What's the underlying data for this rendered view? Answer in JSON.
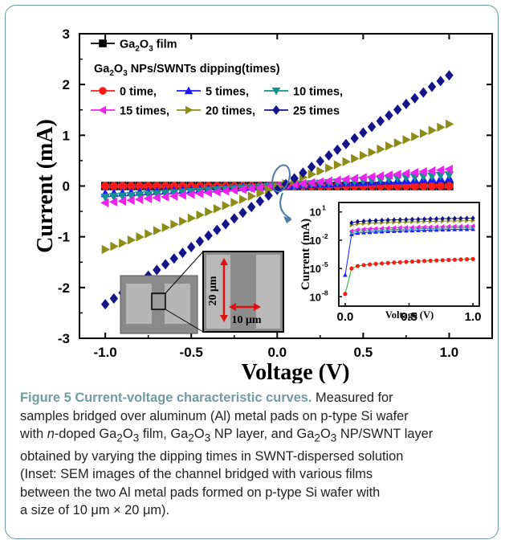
{
  "chart_data": [
    {
      "type": "line",
      "xlabel": "Voltage (V)",
      "ylabel": "Current (mA)",
      "xlim": [
        -1.15,
        1.25
      ],
      "ylim": [
        -3,
        3
      ],
      "xticks": [
        "-1.0",
        "-0.5",
        "0.0",
        "0.5",
        "1.0"
      ],
      "yticks": [
        "-3",
        "-2",
        "-1",
        "0",
        "1",
        "2",
        "3"
      ],
      "legend_title": "Ga2O3 NPs/SWNTs dipping(times)",
      "grid": false,
      "series": [
        {
          "name": "Ga2O3 film",
          "color": "#000000",
          "marker": "square",
          "slope": 0.0,
          "x": [
            -1.0,
            1.0
          ],
          "y": [
            0.0,
            0.0
          ]
        },
        {
          "name": "0 time,",
          "color": "#ff1a1a",
          "marker": "circle",
          "slope": 0.002,
          "x": [
            -1.0,
            1.0
          ],
          "y": [
            -0.002,
            0.002
          ]
        },
        {
          "name": "5 times,",
          "color": "#1a1aff",
          "marker": "triangle-up",
          "slope": 0.15,
          "x": [
            -1.0,
            1.0
          ],
          "y": [
            -0.15,
            0.15
          ]
        },
        {
          "name": "10 times,",
          "color": "#139090",
          "marker": "triangle-down",
          "slope": 0.22,
          "x": [
            -1.0,
            1.0
          ],
          "y": [
            -0.22,
            0.22
          ]
        },
        {
          "name": "15 times,",
          "color": "#ee22ee",
          "marker": "triangle-left",
          "slope": 0.33,
          "x": [
            -1.0,
            1.0
          ],
          "y": [
            -0.33,
            0.33
          ]
        },
        {
          "name": "20 times,",
          "color": "#8c8c16",
          "marker": "triangle-right",
          "slope": 1.22,
          "x": [
            -1.0,
            1.0
          ],
          "y": [
            -1.25,
            1.22
          ]
        },
        {
          "name": "25 times",
          "color": "#13138a",
          "marker": "diamond",
          "slope": 2.2,
          "x": [
            -1.0,
            1.0
          ],
          "y": [
            -2.33,
            2.18
          ]
        }
      ]
    },
    {
      "type": "line",
      "scale": "log-y",
      "xlabel": "Voltage (V)",
      "ylabel": "Current (mA)",
      "xlim": [
        -0.05,
        1.05
      ],
      "xticks": [
        "0.0",
        "0.5",
        "1.0"
      ],
      "yticks": [
        "10",
        "10",
        "10",
        "10"
      ],
      "ytick_exponents": [
        "1",
        "-2",
        "-5",
        "-8"
      ],
      "series": [
        {
          "name": "0 time,",
          "points": [
            [
              0.0,
              2e-08
            ],
            [
              0.05,
              1e-05
            ],
            [
              1.0,
              0.0001
            ]
          ]
        },
        {
          "name": "5 times,",
          "points": [
            [
              0.0,
              2e-06
            ],
            [
              0.05,
              0.04
            ],
            [
              1.0,
              0.15
            ]
          ]
        },
        {
          "name": "10 times,",
          "points": [
            [
              0.05,
              0.06
            ],
            [
              1.0,
              0.22
            ]
          ]
        },
        {
          "name": "15 times,",
          "points": [
            [
              0.05,
              0.1
            ],
            [
              1.0,
              0.33
            ]
          ]
        },
        {
          "name": "20 times,",
          "points": [
            [
              0.05,
              0.4
            ],
            [
              1.0,
              1.2
            ]
          ]
        },
        {
          "name": "25 times",
          "points": [
            [
              0.05,
              0.7
            ],
            [
              1.0,
              2.2
            ]
          ]
        }
      ]
    }
  ],
  "sem": {
    "label_vertical": "20 μm",
    "label_horizontal": "10 μm"
  },
  "caption": {
    "label": "Figure 5",
    "title": "Current-voltage characteristic curves.",
    "line1": "Measured for",
    "line2": "samples bridged over aluminum (Al) metal pads on p-type Si wafer",
    "line3a": "with ",
    "line3b": "n",
    "line3c": "-doped Ga",
    "line3d": "O",
    "line3e": " film, Ga",
    "line3f": "O",
    "line3g": " NP layer, and Ga",
    "line3h": "O",
    "line3i": " NP/SWNT layer",
    "line4": "obtained by varying the dipping times in SWNT-dispersed solution",
    "line5": "(Inset: SEM images of the channel bridged with various films",
    "line6": "between the two Al metal pads formed on p-type Si wafer with",
    "line7": "a size of 10 μm × 20 μm).",
    "sub2": "2",
    "sub3": "3"
  }
}
